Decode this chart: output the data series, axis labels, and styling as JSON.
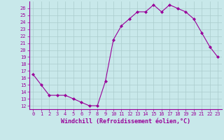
{
  "hours": [
    0,
    1,
    2,
    3,
    4,
    5,
    6,
    7,
    8,
    9,
    10,
    11,
    12,
    13,
    14,
    15,
    16,
    17,
    18,
    19,
    20,
    21,
    22,
    23
  ],
  "windchill": [
    16.5,
    15.0,
    13.5,
    13.5,
    13.5,
    13.0,
    12.5,
    12.0,
    12.0,
    15.5,
    21.5,
    23.5,
    24.5,
    25.5,
    25.5,
    26.5,
    25.5,
    26.5,
    26.0,
    25.5,
    24.5,
    22.5,
    20.5,
    19.0
  ],
  "line_color": "#990099",
  "bg_color": "#c8e8ea",
  "grid_color": "#aacccc",
  "xlabel": "Windchill (Refroidissement éolien,°C)",
  "ylim_min": 11.5,
  "ylim_max": 27.0,
  "xlim_min": -0.5,
  "xlim_max": 23.5,
  "yticks": [
    12,
    13,
    14,
    15,
    16,
    17,
    18,
    19,
    20,
    21,
    22,
    23,
    24,
    25,
    26
  ],
  "xticks": [
    0,
    1,
    2,
    3,
    4,
    5,
    6,
    7,
    8,
    9,
    10,
    11,
    12,
    13,
    14,
    15,
    16,
    17,
    18,
    19,
    20,
    21,
    22,
    23
  ],
  "tick_fontsize": 5,
  "label_fontsize": 6,
  "marker_size": 2.0,
  "line_width": 0.8
}
